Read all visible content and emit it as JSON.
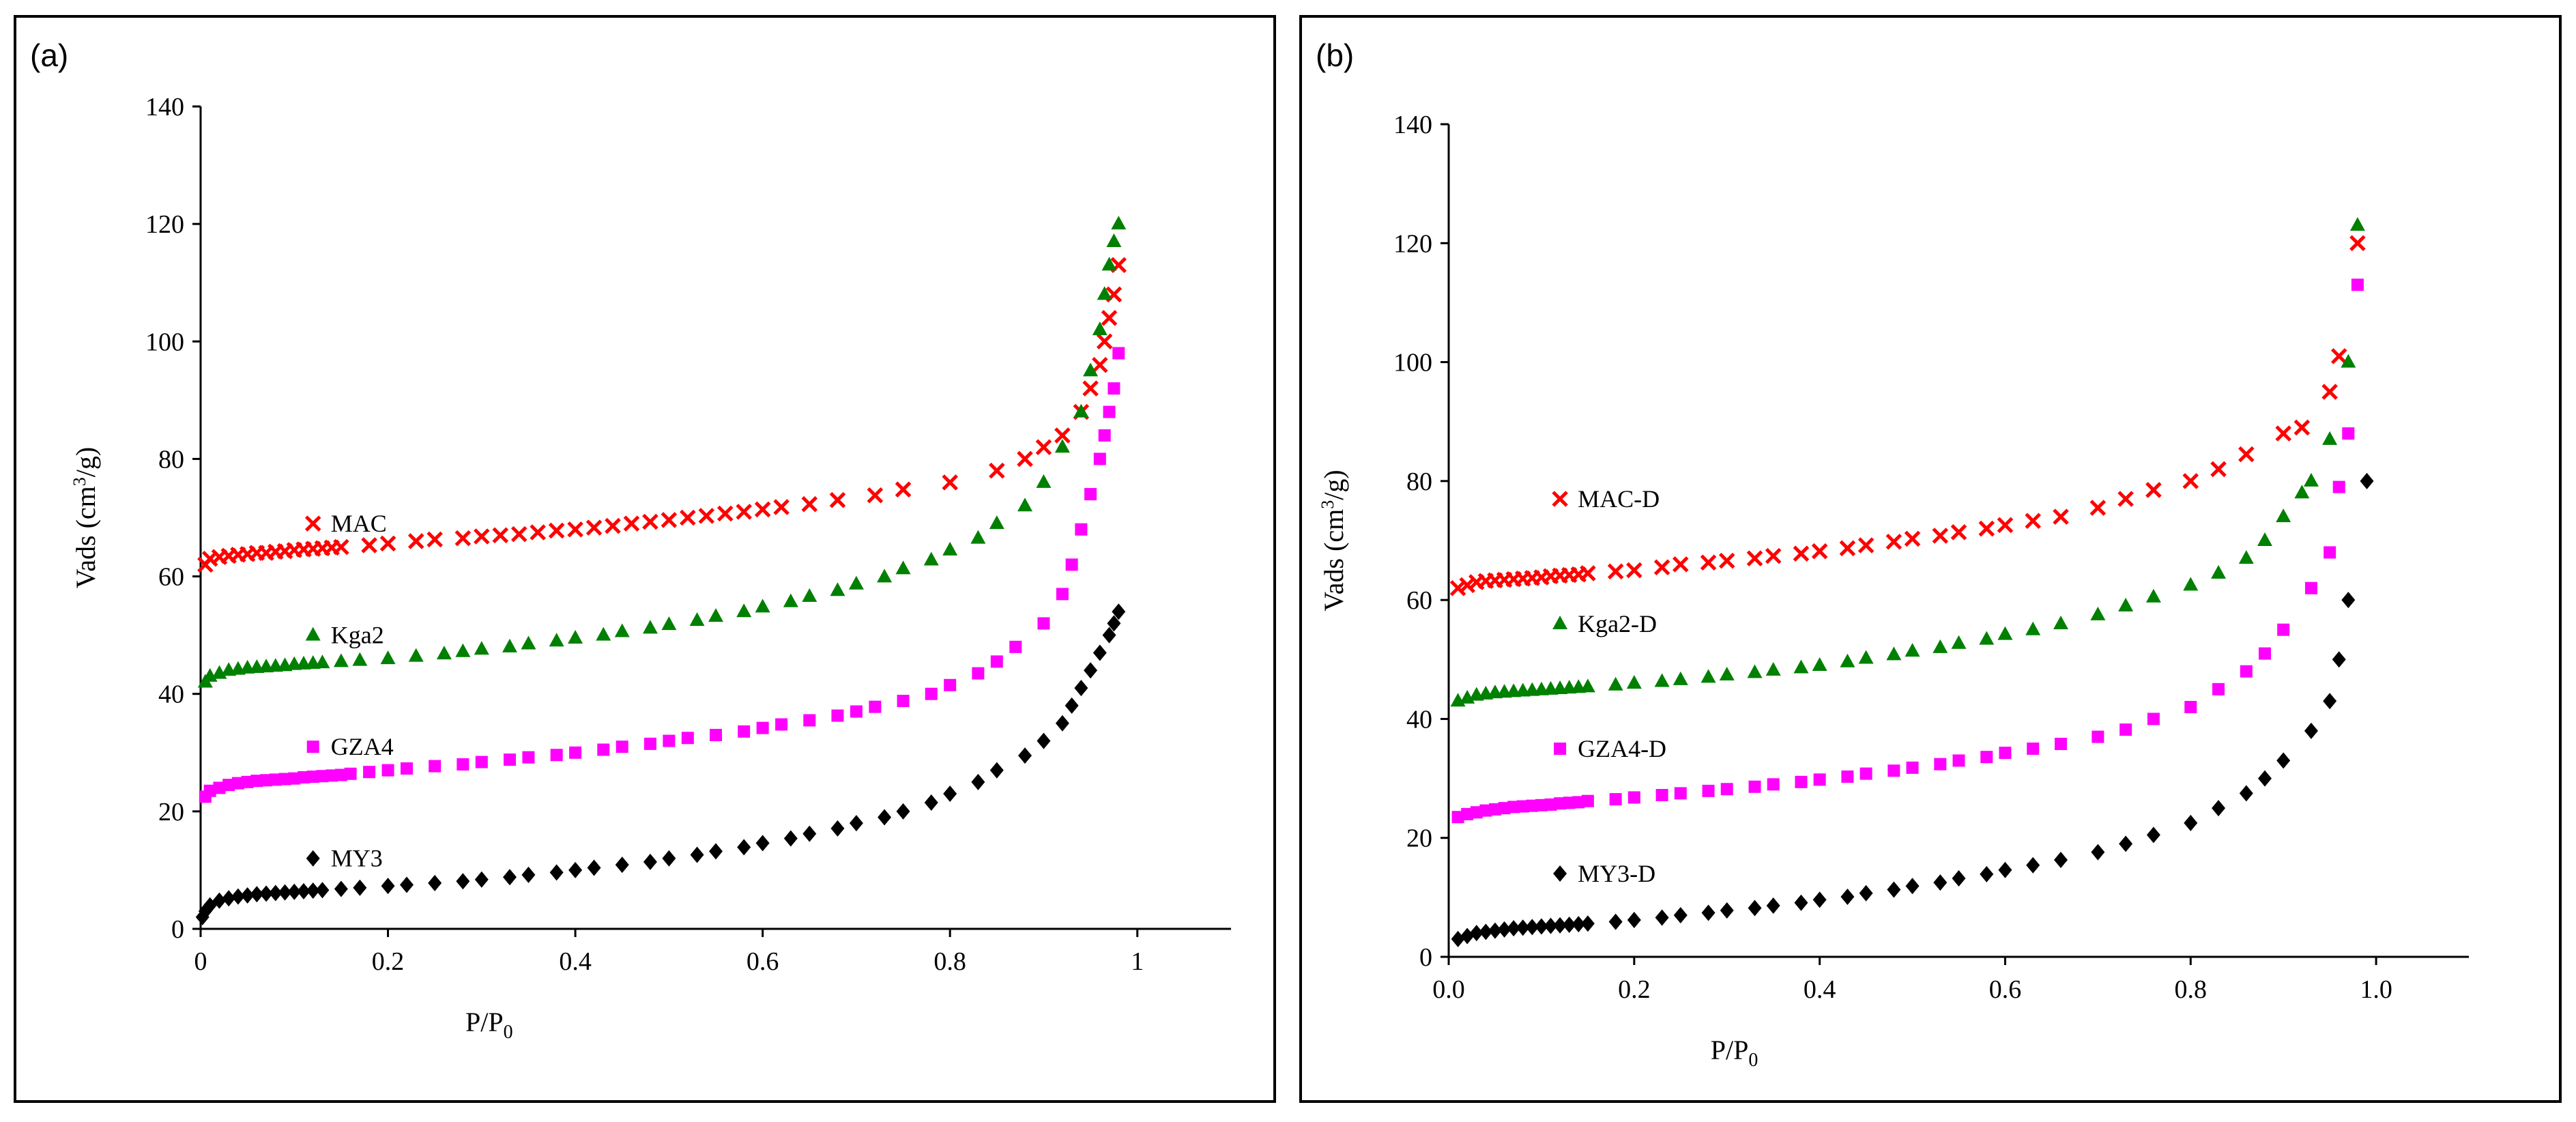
{
  "chart_data": [
    {
      "panel_label": "(a)",
      "type": "scatter",
      "xlabel": "P/P",
      "xlabel_sub": "0",
      "ylabel_pre": "Vads (cm",
      "ylabel_sup": "3",
      "ylabel_post": "/g)",
      "xlim": [
        0,
        1.1
      ],
      "ylim": [
        0,
        140
      ],
      "x_ticks": [
        0,
        0.2,
        0.4,
        0.6,
        0.8,
        1
      ],
      "x_tick_labels": [
        "0",
        "0.2",
        "0.4",
        "0.6",
        "0.8",
        "1"
      ],
      "y_ticks": [
        0,
        20,
        40,
        60,
        80,
        100,
        120,
        140
      ],
      "y_tick_labels": [
        "0",
        "20",
        "40",
        "60",
        "80",
        "100",
        "120",
        "140"
      ],
      "grid": false,
      "series": [
        {
          "name": "MAC",
          "marker": "x",
          "color": "#ff0000",
          "legend_x": 0.12,
          "legend_y": 69,
          "x": [
            0.005,
            0.01,
            0.02,
            0.03,
            0.04,
            0.05,
            0.06,
            0.07,
            0.08,
            0.09,
            0.1,
            0.11,
            0.12,
            0.13,
            0.14,
            0.15,
            0.18,
            0.2,
            0.23,
            0.25,
            0.28,
            0.3,
            0.32,
            0.34,
            0.36,
            0.38,
            0.4,
            0.42,
            0.44,
            0.46,
            0.48,
            0.5,
            0.52,
            0.54,
            0.56,
            0.58,
            0.6,
            0.62,
            0.65,
            0.68,
            0.72,
            0.75,
            0.8,
            0.85,
            0.88,
            0.9,
            0.92,
            0.94,
            0.95,
            0.96,
            0.965,
            0.97,
            0.975,
            0.98
          ],
          "y": [
            62,
            63,
            63.3,
            63.5,
            63.7,
            63.8,
            64,
            64,
            64.2,
            64.3,
            64.5,
            64.6,
            64.7,
            64.8,
            64.9,
            65,
            65.3,
            65.6,
            66,
            66.3,
            66.5,
            66.8,
            67,
            67.2,
            67.5,
            67.8,
            68,
            68.3,
            68.6,
            69,
            69.3,
            69.6,
            70,
            70.3,
            70.7,
            71,
            71.4,
            71.8,
            72.3,
            73,
            73.8,
            74.8,
            76,
            78,
            80,
            82,
            84,
            88,
            92,
            96,
            100,
            104,
            108,
            113
          ]
        },
        {
          "name": "Kga2",
          "marker": "triangle",
          "color": "#008000",
          "legend_x": 0.12,
          "legend_y": 50,
          "x": [
            0.005,
            0.01,
            0.02,
            0.03,
            0.04,
            0.05,
            0.06,
            0.07,
            0.08,
            0.09,
            0.1,
            0.11,
            0.12,
            0.13,
            0.15,
            0.17,
            0.2,
            0.23,
            0.26,
            0.28,
            0.3,
            0.33,
            0.35,
            0.38,
            0.4,
            0.43,
            0.45,
            0.48,
            0.5,
            0.53,
            0.55,
            0.58,
            0.6,
            0.63,
            0.65,
            0.68,
            0.7,
            0.73,
            0.75,
            0.78,
            0.8,
            0.83,
            0.85,
            0.88,
            0.9,
            0.92,
            0.94,
            0.95,
            0.96,
            0.965,
            0.97,
            0.975,
            0.98
          ],
          "y": [
            42,
            43,
            43.5,
            44,
            44.2,
            44.4,
            44.5,
            44.6,
            44.7,
            44.8,
            45,
            45.1,
            45.2,
            45.3,
            45.5,
            45.7,
            46,
            46.4,
            46.8,
            47.2,
            47.6,
            48,
            48.5,
            49,
            49.5,
            50,
            50.6,
            51.2,
            51.8,
            52.5,
            53.2,
            54,
            54.8,
            55.7,
            56.6,
            57.6,
            58.7,
            59.9,
            61.3,
            62.8,
            64.5,
            66.5,
            69,
            72,
            76,
            82,
            88,
            95,
            102,
            108,
            113,
            117,
            120
          ]
        },
        {
          "name": "GZA4",
          "marker": "square",
          "color": "#ff00ff",
          "legend_x": 0.12,
          "legend_y": 31,
          "x": [
            0.005,
            0.01,
            0.02,
            0.03,
            0.04,
            0.05,
            0.06,
            0.07,
            0.08,
            0.09,
            0.1,
            0.11,
            0.12,
            0.13,
            0.14,
            0.15,
            0.16,
            0.18,
            0.2,
            0.22,
            0.25,
            0.28,
            0.3,
            0.33,
            0.35,
            0.38,
            0.4,
            0.43,
            0.45,
            0.48,
            0.5,
            0.52,
            0.55,
            0.58,
            0.6,
            0.62,
            0.65,
            0.68,
            0.7,
            0.72,
            0.75,
            0.78,
            0.8,
            0.83,
            0.85,
            0.87,
            0.9,
            0.92,
            0.93,
            0.94,
            0.95,
            0.96,
            0.965,
            0.97,
            0.975,
            0.98
          ],
          "y": [
            22.5,
            23.5,
            24,
            24.5,
            24.8,
            25,
            25.2,
            25.3,
            25.4,
            25.5,
            25.6,
            25.8,
            25.9,
            26,
            26.1,
            26.2,
            26.4,
            26.7,
            27,
            27.3,
            27.7,
            28,
            28.4,
            28.8,
            29.2,
            29.6,
            30,
            30.5,
            31,
            31.5,
            32,
            32.5,
            33,
            33.6,
            34.2,
            34.8,
            35.5,
            36.3,
            37,
            37.8,
            38.8,
            40,
            41.5,
            43.5,
            45.5,
            48,
            52,
            57,
            62,
            68,
            74,
            80,
            84,
            88,
            92,
            98
          ]
        },
        {
          "name": "MY3",
          "marker": "diamond",
          "color": "#000000",
          "legend_x": 0.12,
          "legend_y": 12,
          "x": [
            0.002,
            0.005,
            0.01,
            0.02,
            0.03,
            0.04,
            0.05,
            0.06,
            0.07,
            0.08,
            0.09,
            0.1,
            0.11,
            0.12,
            0.13,
            0.15,
            0.17,
            0.2,
            0.22,
            0.25,
            0.28,
            0.3,
            0.33,
            0.35,
            0.38,
            0.4,
            0.42,
            0.45,
            0.48,
            0.5,
            0.53,
            0.55,
            0.58,
            0.6,
            0.63,
            0.65,
            0.68,
            0.7,
            0.73,
            0.75,
            0.78,
            0.8,
            0.83,
            0.85,
            0.88,
            0.9,
            0.92,
            0.93,
            0.94,
            0.95,
            0.96,
            0.97,
            0.975,
            0.98
          ],
          "y": [
            2,
            3,
            4,
            4.8,
            5.2,
            5.5,
            5.7,
            5.9,
            6,
            6.1,
            6.2,
            6.3,
            6.4,
            6.5,
            6.6,
            6.8,
            7,
            7.3,
            7.5,
            7.8,
            8.1,
            8.4,
            8.8,
            9.2,
            9.6,
            10,
            10.4,
            10.9,
            11.4,
            12,
            12.6,
            13.2,
            13.9,
            14.6,
            15.4,
            16.2,
            17.1,
            18,
            19,
            20,
            21.5,
            23,
            25,
            27,
            29.5,
            32,
            35,
            38,
            41,
            44,
            47,
            50,
            52,
            54
          ]
        }
      ]
    },
    {
      "panel_label": "(b)",
      "type": "scatter",
      "xlabel": "P/P",
      "xlabel_sub": "0",
      "ylabel_pre": "Vads (cm",
      "ylabel_sup": "3",
      "ylabel_post": "/g)",
      "xlim": [
        0,
        1.1
      ],
      "ylim": [
        0,
        140
      ],
      "x_ticks": [
        0,
        0.2,
        0.4,
        0.6,
        0.8,
        1.0
      ],
      "x_tick_labels": [
        "0.0",
        "0.2",
        "0.4",
        "0.6",
        "0.8",
        "1.0"
      ],
      "y_ticks": [
        0,
        20,
        40,
        60,
        80,
        100,
        120,
        140
      ],
      "y_tick_labels": [
        "0",
        "20",
        "40",
        "60",
        "80",
        "100",
        "120",
        "140"
      ],
      "grid": false,
      "series": [
        {
          "name": "MAC-D",
          "marker": "x",
          "color": "#ff0000",
          "legend_x": 0.12,
          "legend_y": 77,
          "x": [
            0.01,
            0.02,
            0.03,
            0.04,
            0.05,
            0.06,
            0.07,
            0.08,
            0.09,
            0.1,
            0.11,
            0.12,
            0.13,
            0.14,
            0.15,
            0.18,
            0.2,
            0.23,
            0.25,
            0.28,
            0.3,
            0.33,
            0.35,
            0.38,
            0.4,
            0.43,
            0.45,
            0.48,
            0.5,
            0.53,
            0.55,
            0.58,
            0.6,
            0.63,
            0.66,
            0.7,
            0.73,
            0.76,
            0.8,
            0.83,
            0.86,
            0.9,
            0.92,
            0.95,
            0.96,
            0.98
          ],
          "y": [
            62,
            62.5,
            63,
            63.2,
            63.3,
            63.4,
            63.5,
            63.6,
            63.7,
            63.8,
            64,
            64.1,
            64.2,
            64.3,
            64.5,
            64.8,
            65,
            65.5,
            66,
            66.3,
            66.6,
            67,
            67.4,
            67.8,
            68.2,
            68.7,
            69.2,
            69.8,
            70.3,
            70.8,
            71.4,
            72,
            72.6,
            73.3,
            74,
            75.5,
            77,
            78.5,
            80,
            82,
            84.5,
            88,
            89,
            95,
            101,
            120
          ]
        },
        {
          "name": "Kga2-D",
          "marker": "triangle",
          "color": "#008000",
          "legend_x": 0.12,
          "legend_y": 56,
          "x": [
            0.01,
            0.02,
            0.03,
            0.04,
            0.05,
            0.06,
            0.07,
            0.08,
            0.09,
            0.1,
            0.11,
            0.12,
            0.13,
            0.14,
            0.15,
            0.18,
            0.2,
            0.23,
            0.25,
            0.28,
            0.3,
            0.33,
            0.35,
            0.38,
            0.4,
            0.43,
            0.45,
            0.48,
            0.5,
            0.53,
            0.55,
            0.58,
            0.6,
            0.63,
            0.66,
            0.7,
            0.73,
            0.76,
            0.8,
            0.83,
            0.86,
            0.88,
            0.9,
            0.92,
            0.93,
            0.95,
            0.97,
            0.98
          ],
          "y": [
            43,
            43.5,
            44,
            44.2,
            44.4,
            44.5,
            44.6,
            44.7,
            44.8,
            44.9,
            45,
            45.1,
            45.2,
            45.3,
            45.4,
            45.7,
            46,
            46.3,
            46.6,
            47,
            47.4,
            47.8,
            48.2,
            48.6,
            49,
            49.6,
            50.2,
            50.8,
            51.4,
            52,
            52.7,
            53.4,
            54.2,
            55,
            56,
            57.5,
            59,
            60.5,
            62.5,
            64.5,
            67,
            70,
            74,
            78,
            80,
            87,
            100,
            123
          ]
        },
        {
          "name": "GZA4-D",
          "marker": "square",
          "color": "#ff00ff",
          "legend_x": 0.12,
          "legend_y": 35,
          "x": [
            0.01,
            0.02,
            0.03,
            0.04,
            0.05,
            0.06,
            0.07,
            0.08,
            0.09,
            0.1,
            0.11,
            0.12,
            0.13,
            0.14,
            0.15,
            0.18,
            0.2,
            0.23,
            0.25,
            0.28,
            0.3,
            0.33,
            0.35,
            0.38,
            0.4,
            0.43,
            0.45,
            0.48,
            0.5,
            0.53,
            0.55,
            0.58,
            0.6,
            0.63,
            0.66,
            0.7,
            0.73,
            0.76,
            0.8,
            0.83,
            0.86,
            0.88,
            0.9,
            0.93,
            0.95,
            0.96,
            0.97,
            0.98
          ],
          "y": [
            23.5,
            24,
            24.3,
            24.6,
            24.8,
            25,
            25.2,
            25.3,
            25.4,
            25.5,
            25.6,
            25.8,
            25.9,
            26,
            26.2,
            26.5,
            26.8,
            27.2,
            27.5,
            27.9,
            28.2,
            28.6,
            29,
            29.4,
            29.8,
            30.3,
            30.8,
            31.3,
            31.8,
            32.4,
            33,
            33.6,
            34.3,
            35,
            35.8,
            37,
            38.2,
            40,
            42,
            45,
            48,
            51,
            55,
            62,
            68,
            79,
            88,
            113
          ]
        },
        {
          "name": "MY3-D",
          "marker": "diamond",
          "color": "#000000",
          "legend_x": 0.12,
          "legend_y": 14,
          "x": [
            0.01,
            0.02,
            0.03,
            0.04,
            0.05,
            0.06,
            0.07,
            0.08,
            0.09,
            0.1,
            0.11,
            0.12,
            0.13,
            0.14,
            0.15,
            0.18,
            0.2,
            0.23,
            0.25,
            0.28,
            0.3,
            0.33,
            0.35,
            0.38,
            0.4,
            0.43,
            0.45,
            0.48,
            0.5,
            0.53,
            0.55,
            0.58,
            0.6,
            0.63,
            0.66,
            0.7,
            0.73,
            0.76,
            0.8,
            0.83,
            0.86,
            0.88,
            0.9,
            0.93,
            0.95,
            0.96,
            0.97,
            0.99
          ],
          "y": [
            3,
            3.5,
            4,
            4.2,
            4.4,
            4.6,
            4.8,
            4.9,
            5,
            5.1,
            5.2,
            5.3,
            5.4,
            5.5,
            5.6,
            5.9,
            6.2,
            6.6,
            7,
            7.4,
            7.8,
            8.2,
            8.6,
            9.1,
            9.6,
            10.1,
            10.7,
            11.3,
            11.9,
            12.5,
            13.2,
            13.9,
            14.6,
            15.4,
            16.3,
            17.6,
            19,
            20.5,
            22.5,
            25,
            27.5,
            30,
            33,
            38,
            43,
            50,
            60,
            80
          ]
        }
      ]
    }
  ]
}
